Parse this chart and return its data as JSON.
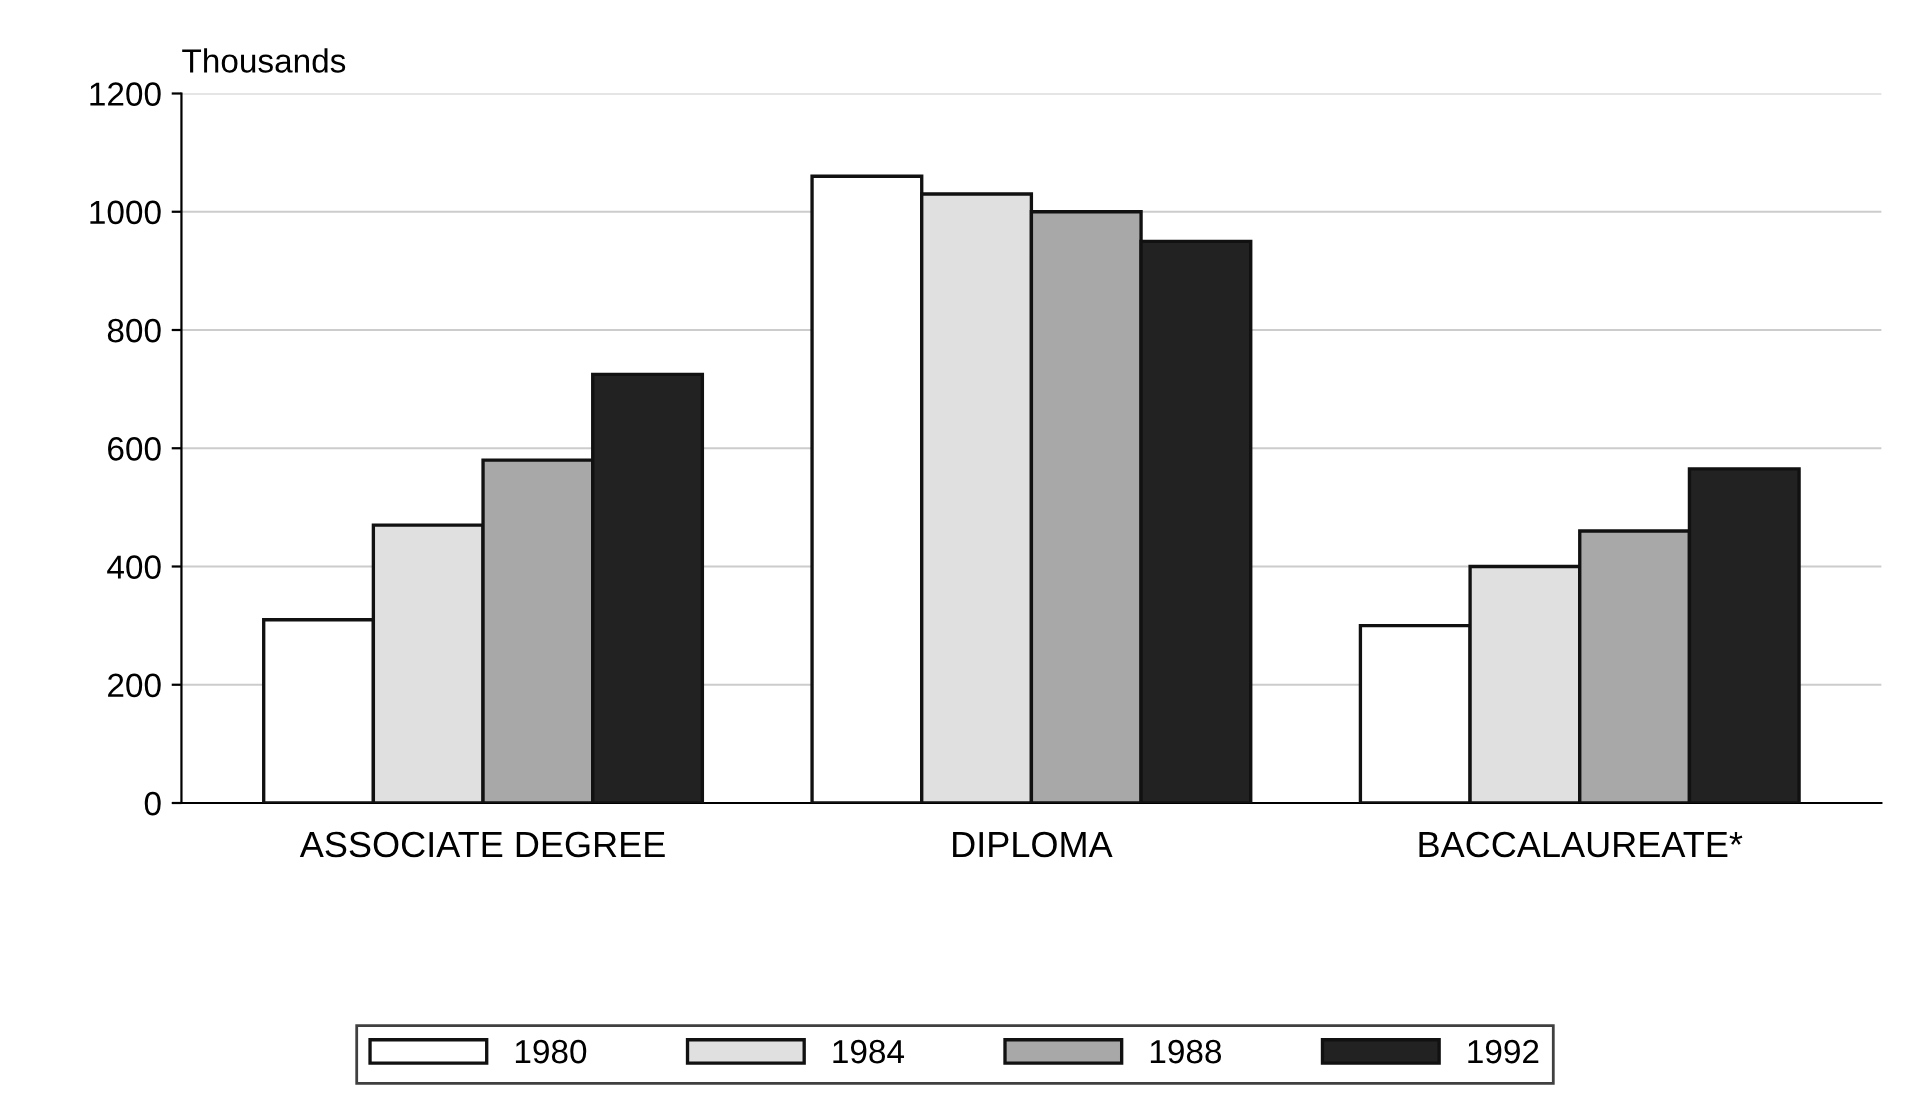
{
  "chart_data": {
    "type": "bar",
    "ylabel": "Thousands",
    "categories": [
      "ASSOCIATE DEGREE",
      "DIPLOMA",
      "BACCALAUREATE*"
    ],
    "series": [
      {
        "name": "1980",
        "color": "#ffffff",
        "values": [
          310,
          1060,
          300
        ]
      },
      {
        "name": "1984",
        "color": "#e0e0e0",
        "values": [
          470,
          1030,
          400
        ]
      },
      {
        "name": "1988",
        "color": "#a8a8a8",
        "values": [
          580,
          1000,
          460
        ]
      },
      {
        "name": "1992",
        "color": "#222222",
        "values": [
          725,
          950,
          565
        ]
      }
    ],
    "ylim": [
      0,
      1200
    ],
    "yticks": [
      0,
      200,
      400,
      600,
      800,
      1000,
      1200
    ],
    "grid": "y",
    "legend": "bottom"
  }
}
